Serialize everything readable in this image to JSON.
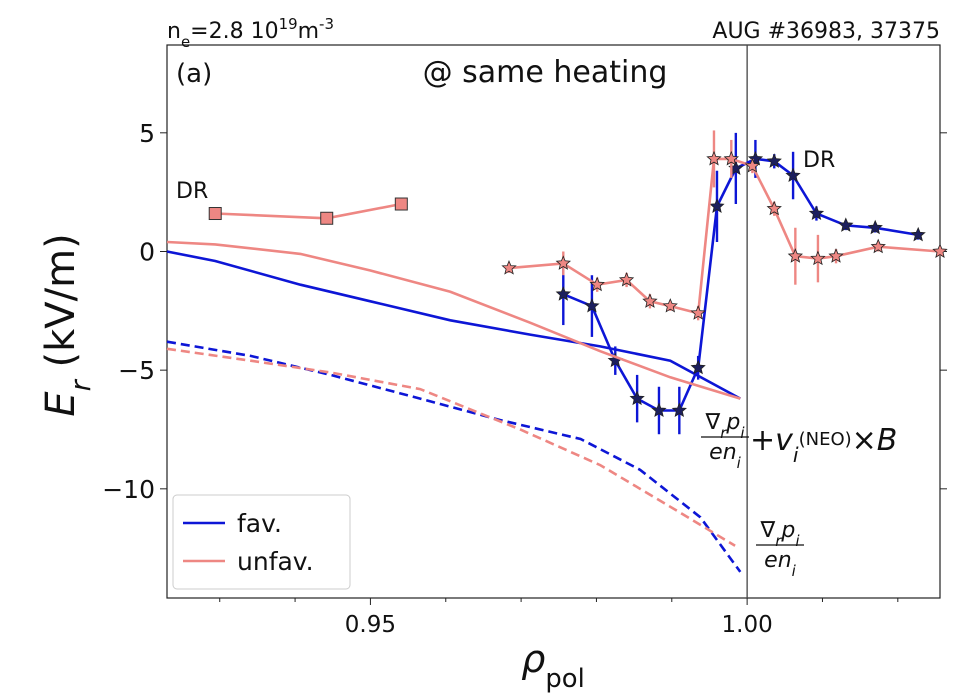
{
  "chart_data": {
    "type": "profile",
    "header_left": [
      {
        "text": "n",
        "style": "normal"
      },
      {
        "text": "e",
        "style": "sub"
      },
      {
        "text": "=2.8 10",
        "style": "normal"
      },
      {
        "text": "19",
        "style": "sup"
      },
      {
        "text": "m",
        "style": "normal"
      },
      {
        "text": "-3",
        "style": "sup"
      }
    ],
    "header_right": "AUG #36983, 37375",
    "panel_label": "(a)",
    "subtitle": "@ same heating",
    "dr_labels": [
      "DR",
      "DR"
    ],
    "y_label": [
      {
        "text": "E",
        "style": "italic"
      },
      {
        "text": "r",
        "style": "italic-sub"
      },
      {
        "text": " (kV/m)",
        "style": "normal"
      }
    ],
    "x_label": [
      {
        "text": "ρ",
        "style": "italic"
      },
      {
        "text": "pol",
        "style": "sub"
      }
    ],
    "formula_full": {
      "numerator": [
        {
          "text": "∇",
          "style": "normal"
        },
        {
          "text": "r",
          "style": "italic-sub"
        },
        {
          "text": "p",
          "style": "italic"
        },
        {
          "text": "i",
          "style": "italic-sub"
        }
      ],
      "denominator": [
        {
          "text": "en",
          "style": "italic"
        },
        {
          "text": "i",
          "style": "italic-sub"
        }
      ],
      "rest": [
        {
          "text": "+",
          "style": "normal"
        },
        {
          "text": "v",
          "style": "italic"
        },
        {
          "text": "i",
          "style": "italic-sub"
        },
        {
          "text": "(NEO)",
          "style": "small"
        },
        {
          "text": "×",
          "style": "normal"
        },
        {
          "text": "B",
          "style": "italic"
        }
      ]
    },
    "formula_dia": {
      "numerator": [
        {
          "text": "∇",
          "style": "normal"
        },
        {
          "text": "r",
          "style": "italic-sub"
        },
        {
          "text": "p",
          "style": "italic"
        },
        {
          "text": "i",
          "style": "italic-sub"
        }
      ],
      "denominator": [
        {
          "text": "en",
          "style": "italic"
        },
        {
          "text": "i",
          "style": "italic-sub"
        }
      ]
    },
    "xlim": [
      0.923,
      1.0256
    ],
    "ylim": [
      -14.6,
      8.7
    ],
    "xticks": [
      0.95,
      {
        "value": 1,
        "label": "1.00"
      }
    ],
    "xminorticks": [
      0.93,
      0.94,
      0.96,
      0.97,
      0.98,
      0.99,
      1.01,
      1.02
    ],
    "yticks": [
      {
        "value": -10,
        "label": "−10"
      },
      {
        "value": -5,
        "label": "−5"
      },
      0,
      5
    ],
    "separatrix": 1,
    "legend": "lower left",
    "series": [
      {
        "name": "fav.",
        "color": "#0d16d6",
        "marker_fill": "#1c1f5e",
        "measured": {
          "x": [
            0.9756,
            0.9794,
            0.9825,
            0.9854,
            0.9883,
            0.991,
            0.9935,
            0.996,
            0.9985,
            1.0011,
            1.0036,
            1.0061,
            1.0092,
            1.0131,
            1.017,
            1.0227
          ],
          "y": [
            -1.8,
            -2.3,
            -4.6,
            -6.2,
            -6.7,
            -6.7,
            -4.9,
            1.9,
            3.5,
            3.9,
            3.8,
            3.2,
            1.6,
            1.1,
            1.0,
            0.7
          ],
          "err": [
            1.3,
            1.3,
            0.6,
            1.0,
            1.0,
            1.0,
            0.5,
            1.5,
            1.5,
            0.8,
            0.3,
            1.0,
            0.3,
            0.2,
            0.2,
            0.2
          ]
        },
        "model": {
          "x": [
            0.923,
            0.9294,
            0.9407,
            0.95,
            0.9606,
            0.9712,
            0.9805,
            0.9898,
            0.9991
          ],
          "y": [
            0,
            -0.4,
            -1.4,
            -2.1,
            -2.9,
            -3.5,
            -4.0,
            -4.6,
            -6.2
          ]
        },
        "model_dia": {
          "x": [
            0.923,
            0.9341,
            0.9447,
            0.9566,
            0.9672,
            0.9779,
            0.9858,
            0.9938,
            0.9991
          ],
          "y": [
            -3.8,
            -4.4,
            -5.2,
            -6.2,
            -7.1,
            -7.9,
            -9.2,
            -11.2,
            -13.5
          ]
        }
      },
      {
        "name": "unfav.",
        "color": "#ee8783",
        "marker_fill": "#ee8783",
        "measured": {
          "x": [
            0.9684,
            0.9756,
            0.9801,
            0.984,
            0.9871,
            0.9898,
            0.9935,
            0.9956,
            0.9979,
            1.0007,
            1.0036,
            1.0064,
            1.0094,
            1.0118,
            1.0174,
            1.0256
          ],
          "y": [
            -0.7,
            -0.5,
            -1.4,
            -1.2,
            -2.1,
            -2.3,
            -2.6,
            3.9,
            3.9,
            3.6,
            1.8,
            -0.2,
            -0.3,
            -0.2,
            0.2,
            0.0
          ],
          "err": [
            0.2,
            0.5,
            0.3,
            0.3,
            0.3,
            0.2,
            0.3,
            1.2,
            0.8,
            0.3,
            0.3,
            1.2,
            1.0,
            0.3,
            0.2,
            0.2
          ]
        },
        "dr": {
          "x": [
            0.9294,
            0.9442,
            0.9541
          ],
          "y": [
            1.6,
            1.4,
            2.0
          ]
        },
        "model": {
          "x": [
            0.923,
            0.9294,
            0.9407,
            0.95,
            0.9606,
            0.9712,
            0.9805,
            0.9898,
            0.9991
          ],
          "y": [
            0.4,
            0.3,
            -0.1,
            -0.8,
            -1.7,
            -3.0,
            -4.2,
            -5.3,
            -6.2
          ]
        },
        "model_dia": {
          "x": [
            0.923,
            0.9341,
            0.9447,
            0.9566,
            0.9699,
            0.9805,
            0.9911,
            0.9984
          ],
          "y": [
            -4.1,
            -4.6,
            -5.1,
            -5.8,
            -7.5,
            -9.0,
            -11.0,
            -12.4
          ]
        }
      }
    ]
  }
}
